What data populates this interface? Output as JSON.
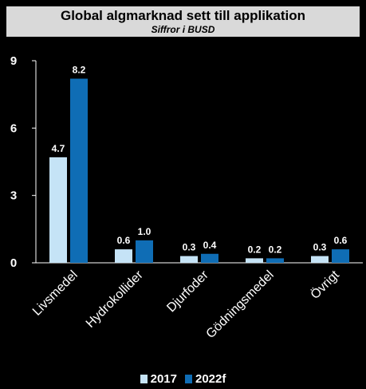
{
  "chart_data": {
    "type": "bar",
    "title": "Global algmarknad sett till applikation",
    "subtitle": "Siffror i BUSD",
    "categories": [
      "Livsmedel",
      "Hydrokollider",
      "Djurfoder",
      "Gödningsmedel",
      "Övrigt"
    ],
    "series": [
      {
        "name": "2017",
        "values": [
          4.7,
          0.6,
          0.3,
          0.2,
          0.3
        ],
        "labels": [
          "4.7",
          "0.6",
          "0.3",
          "0.2",
          "0.3"
        ],
        "color": "#c5e3f6"
      },
      {
        "name": "2022f",
        "values": [
          8.2,
          1.0,
          0.4,
          0.2,
          0.6
        ],
        "labels": [
          "8.2",
          "1.0",
          "0.4",
          "0.2",
          "0.6"
        ],
        "color": "#0f6db5"
      }
    ],
    "ylim": [
      0,
      9
    ],
    "yticks": [
      "0",
      "3",
      "6",
      "9"
    ],
    "grid": false,
    "legend_position": "bottom"
  }
}
